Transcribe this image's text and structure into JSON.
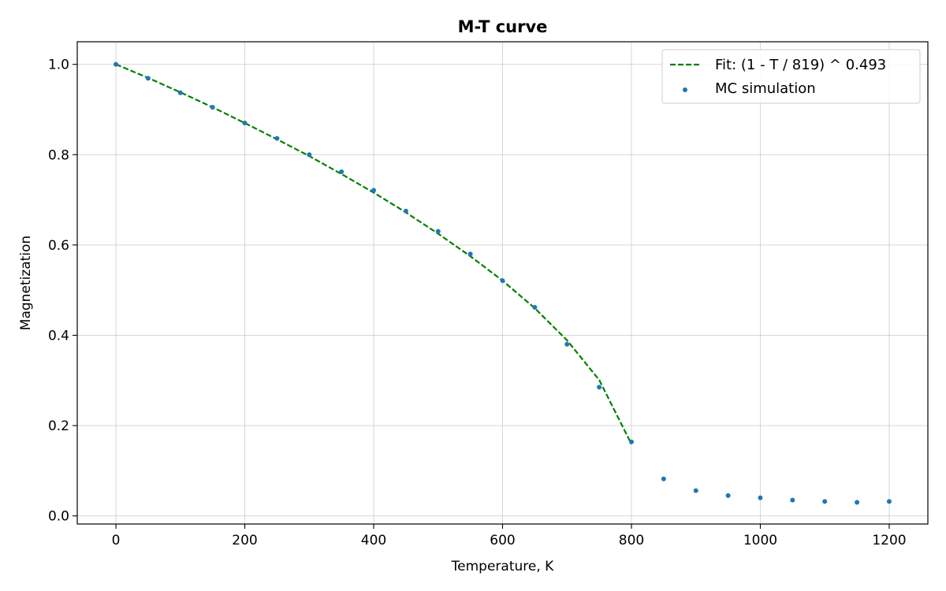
{
  "chart_data": {
    "type": "scatter",
    "title": "M-T curve",
    "xlabel": "Temperature, K",
    "ylabel": "Magnetization",
    "xlim": [
      -60,
      1260
    ],
    "ylim": [
      -0.018,
      1.05
    ],
    "xticks": [
      0,
      200,
      400,
      600,
      800,
      1000,
      1200
    ],
    "yticks": [
      0.0,
      0.2,
      0.4,
      0.6,
      0.8,
      1.0
    ],
    "xtick_labels": [
      "0",
      "200",
      "400",
      "600",
      "800",
      "1000",
      "1200"
    ],
    "ytick_labels": [
      "0.0",
      "0.2",
      "0.4",
      "0.6",
      "0.8",
      "1.0"
    ],
    "grid": true,
    "legend_position": "top-right",
    "series": [
      {
        "name": "Fit: (1 - T / 819) ^ 0.493",
        "kind": "line",
        "style": "dashed",
        "color": "#008000",
        "x": [
          0,
          50,
          100,
          150,
          200,
          250,
          300,
          350,
          400,
          450,
          500,
          550,
          600,
          650,
          700,
          750,
          800
        ],
        "y": [
          1.0,
          0.97,
          0.938,
          0.905,
          0.87,
          0.834,
          0.797,
          0.757,
          0.716,
          0.672,
          0.625,
          0.575,
          0.521,
          0.46,
          0.389,
          0.301,
          0.159
        ]
      },
      {
        "name": "MC simulation",
        "kind": "scatter",
        "color": "#1f77b4",
        "x": [
          0,
          50,
          100,
          150,
          200,
          250,
          300,
          350,
          400,
          450,
          500,
          550,
          600,
          650,
          700,
          750,
          800,
          850,
          900,
          950,
          1000,
          1050,
          1100,
          1150,
          1200
        ],
        "y": [
          1.0,
          0.969,
          0.937,
          0.905,
          0.87,
          0.836,
          0.8,
          0.762,
          0.721,
          0.675,
          0.63,
          0.58,
          0.521,
          0.462,
          0.38,
          0.285,
          0.164,
          0.082,
          0.056,
          0.045,
          0.04,
          0.035,
          0.032,
          0.03,
          0.032
        ]
      }
    ]
  }
}
